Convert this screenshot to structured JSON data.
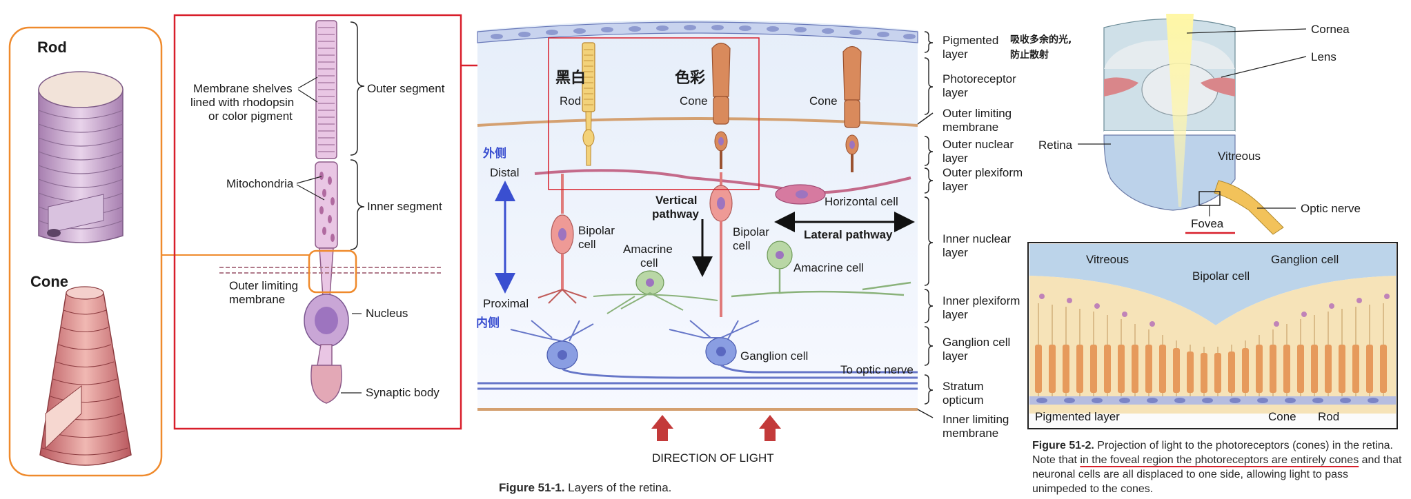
{
  "left_panel": {
    "rod_title": "Rod",
    "cone_title": "Cone"
  },
  "detail_panel": {
    "labels": {
      "membrane_shelves": [
        "Membrane shelves",
        "lined with rhodopsin",
        "or color pigment"
      ],
      "outer_segment": "Outer segment",
      "mitochondria": "Mitochondria",
      "inner_segment": "Inner segment",
      "outer_limiting": [
        "Outer limiting",
        "membrane"
      ],
      "nucleus": "Nucleus",
      "synaptic_body": "Synaptic body"
    }
  },
  "retina_diagram": {
    "cell_labels": {
      "rod_cn": "黑白",
      "rod": "Rod",
      "cone_cn": "色彩",
      "cone": "Cone",
      "cone2": "Cone",
      "cn_outer": "外侧",
      "distal": "Distal",
      "proximal": "Proximal",
      "cn_inner": "内侧",
      "bipolar1": [
        "Bipolar",
        "cell"
      ],
      "amacrine1": [
        "Amacrine",
        "cell"
      ],
      "vertical_pathway": [
        "Vertical",
        "pathway"
      ],
      "bipolar2": [
        "Bipolar",
        "cell"
      ],
      "horizontal_cell": "Horizontal cell",
      "lateral_pathway": "Lateral pathway",
      "amacrine2": "Amacrine cell",
      "ganglion_cell": "Ganglion cell",
      "to_optic_nerve": "To optic nerve",
      "direction_of_light": "DIRECTION OF LIGHT"
    },
    "layers": [
      [
        "Pigmented",
        "layer"
      ],
      [
        "Photoreceptor",
        "layer"
      ],
      [
        "Outer limiting",
        "membrane"
      ],
      [
        "Outer nuclear",
        "layer"
      ],
      [
        "Outer plexiform",
        "layer"
      ],
      [
        "Inner nuclear",
        "layer"
      ],
      [
        "Inner plexiform",
        "layer"
      ],
      [
        "Ganglion cell",
        "layer"
      ],
      [
        "Stratum",
        "opticum"
      ],
      [
        "Inner limiting",
        "membrane"
      ]
    ],
    "note_cn": [
      "吸收多余的光,",
      "防止散射"
    ],
    "caption": {
      "prefix": "Figure 51-1.",
      "text": "Layers of the retina."
    }
  },
  "eye_panel": {
    "labels": {
      "cornea": "Cornea",
      "lens": "Lens",
      "retina": "Retina",
      "vitreous": "Vitreous",
      "optic_nerve": "Optic nerve",
      "fovea": "Fovea"
    },
    "fovea_box": {
      "vitreous": "Vitreous",
      "ganglion_cell": "Ganglion cell",
      "bipolar_cell": "Bipolar cell",
      "pigmented_layer": "Pigmented layer",
      "cone": "Cone",
      "rod": "Rod"
    },
    "caption": {
      "prefix": "Figure 51-2.",
      "t1": "Projection of light to the photoreceptors (cones) in the retina. Note that",
      "t2": "in the foveal region the photoreceptors are entirely cones",
      "t3": "and that neuronal cells are all displaced to one side, allowing light to pass unimpeded to the cones."
    }
  },
  "colors": {
    "highlight_red": "#d81e2a",
    "orange": "#ef8a2c",
    "accent_blue": "#3a4fd0"
  }
}
